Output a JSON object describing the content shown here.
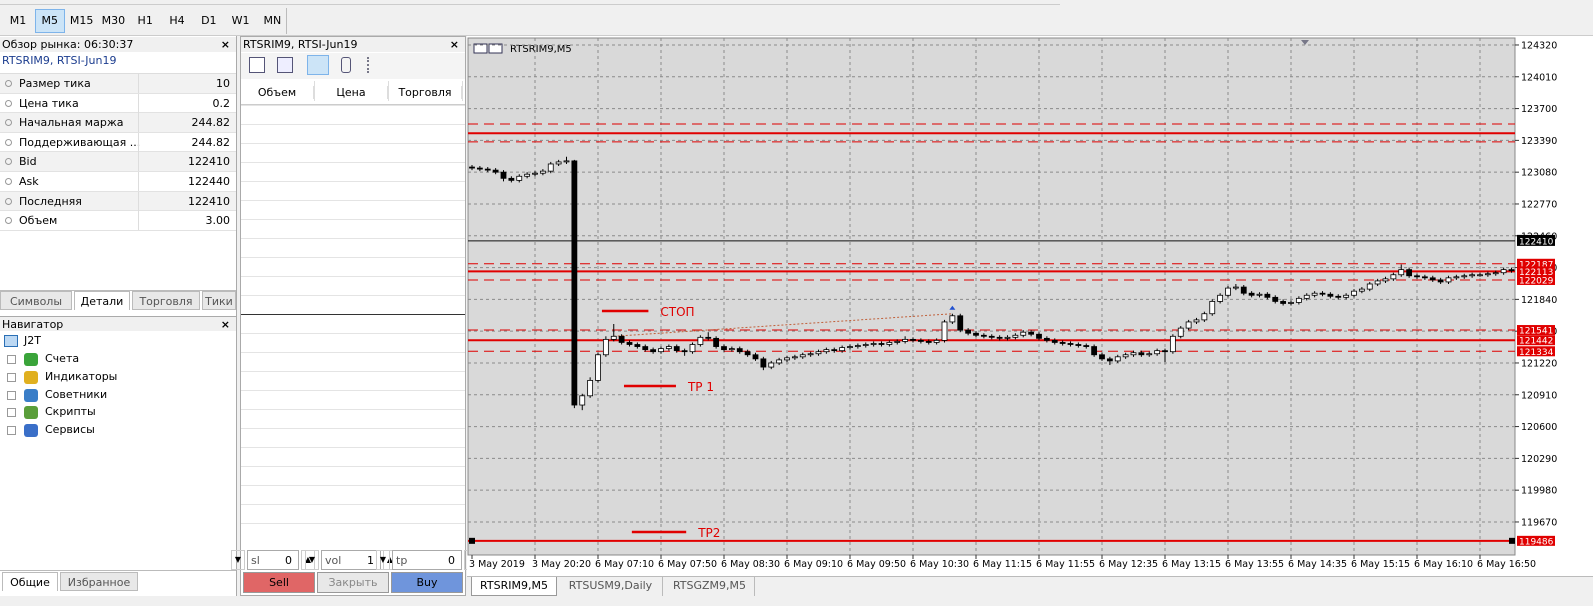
{
  "toolbar": {
    "timeframes": [
      "M1",
      "M5",
      "M15",
      "M30",
      "H1",
      "H4",
      "D1",
      "W1",
      "MN"
    ],
    "selected": 1
  },
  "market_watch": {
    "title": "Обзор рынка: 06:30:37",
    "symbol": "RTSRIM9, RTSI-Jun19",
    "rows": [
      [
        "Размер тика",
        "10"
      ],
      [
        "Цена тика",
        "0.2"
      ],
      [
        "Начальная маржа",
        "244.82"
      ],
      [
        "Поддерживающая ...",
        "244.82"
      ],
      [
        "Bid",
        "122410"
      ],
      [
        "Ask",
        "122440"
      ],
      [
        "Последняя",
        "122410"
      ],
      [
        "Объем",
        "3.00"
      ]
    ],
    "tabs": [
      "Символы",
      "Детали",
      "Торговля",
      "Тики"
    ],
    "selected_tab": 1
  },
  "navigator": {
    "title": "Навигатор",
    "root": "J2T",
    "items": [
      "Счета",
      "Индикаторы",
      "Советники",
      "Скрипты",
      "Сервисы"
    ]
  },
  "bottom_tabs": [
    "Общие",
    "Избранное"
  ],
  "depth": {
    "title": "RTSRIM9, RTSI-Jun19",
    "columns": [
      "Объем",
      "Цена",
      "Торговля"
    ],
    "controls": [
      {
        "label": "sl",
        "value": "0"
      },
      {
        "label": "vol",
        "value": "1"
      },
      {
        "label": "tp",
        "value": "0"
      }
    ],
    "buttons": [
      "Sell",
      "Закрыть",
      "Buy"
    ]
  },
  "chart_data": {
    "type": "candlestick",
    "title": "RTSRIM9,M5",
    "categories": [
      "3 May 2019",
      null,
      null,
      null,
      null,
      null,
      null,
      null,
      "3 May 20:20",
      null,
      null,
      null,
      null,
      null,
      null,
      null,
      "6 May 07:10",
      null,
      null,
      null,
      null,
      null,
      null,
      null,
      "6 May 07:50",
      null,
      null,
      null,
      null,
      null,
      null,
      null,
      "6 May 08:30",
      null,
      null,
      null,
      null,
      null,
      null,
      null,
      "6 May 09:10",
      null,
      null,
      null,
      null,
      null,
      null,
      null,
      "6 May 09:50",
      null,
      null,
      null,
      null,
      null,
      null,
      null,
      "6 May 10:30",
      null,
      null,
      null,
      null,
      null,
      null,
      null,
      "6 May 11:15",
      null,
      null,
      null,
      null,
      null,
      null,
      null,
      "6 May 11:55",
      null,
      null,
      null,
      null,
      null,
      null,
      null,
      "6 May 12:35",
      null,
      null,
      null,
      null,
      null,
      null,
      null,
      "6 May 13:15",
      null,
      null,
      null,
      null,
      null,
      null,
      null,
      "6 May 13:55",
      null,
      null,
      null,
      null,
      null,
      null,
      null,
      "6 May 14:35",
      null,
      null,
      null,
      null,
      null,
      null,
      null,
      "6 May 15:15",
      null,
      null,
      null,
      null,
      null,
      null,
      null,
      "6 May 16:10",
      null,
      null,
      null,
      null,
      null,
      null,
      null,
      "6 May 16:50",
      null,
      null,
      null,
      null
    ],
    "candles": [
      [
        123130,
        123150,
        123100,
        123120
      ],
      [
        123120,
        123140,
        123090,
        123110
      ],
      [
        123110,
        123130,
        123080,
        123100
      ],
      [
        123100,
        123120,
        123060,
        123080
      ],
      [
        123080,
        123100,
        122990,
        123020
      ],
      [
        123020,
        123040,
        122980,
        123000
      ],
      [
        123000,
        123060,
        122980,
        123040
      ],
      [
        123040,
        123080,
        123020,
        123060
      ],
      [
        123060,
        123090,
        123040,
        123070
      ],
      [
        123070,
        123110,
        123050,
        123090
      ],
      [
        123090,
        123180,
        123070,
        123160
      ],
      [
        123160,
        123200,
        123140,
        123180
      ],
      [
        123180,
        123230,
        123160,
        123190
      ],
      [
        123190,
        123200,
        120780,
        120810
      ],
      [
        120810,
        120920,
        120760,
        120900
      ],
      [
        120900,
        121080,
        120880,
        121050
      ],
      [
        121050,
        121320,
        121030,
        121300
      ],
      [
        121300,
        121480,
        121280,
        121450
      ],
      [
        121450,
        121600,
        121430,
        121480
      ],
      [
        121480,
        121500,
        121400,
        121420
      ],
      [
        121420,
        121440,
        121380,
        121400
      ],
      [
        121400,
        121420,
        121360,
        121380
      ],
      [
        121380,
        121400,
        121330,
        121350
      ],
      [
        121350,
        121370,
        121310,
        121330
      ],
      [
        121330,
        121380,
        121310,
        121360
      ],
      [
        121360,
        121400,
        121340,
        121380
      ],
      [
        121380,
        121400,
        121320,
        121340
      ],
      [
        121340,
        121360,
        121290,
        121330
      ],
      [
        121330,
        121420,
        121310,
        121400
      ],
      [
        121400,
        121490,
        121380,
        121470
      ],
      [
        121470,
        121520,
        121440,
        121460
      ],
      [
        121460,
        121480,
        121360,
        121380
      ],
      [
        121380,
        121400,
        121330,
        121350
      ],
      [
        121350,
        121380,
        121330,
        121360
      ],
      [
        121360,
        121380,
        121310,
        121330
      ],
      [
        121330,
        121350,
        121280,
        121300
      ],
      [
        121300,
        121320,
        121240,
        121260
      ],
      [
        121260,
        121280,
        121150,
        121180
      ],
      [
        121180,
        121240,
        121160,
        121220
      ],
      [
        121220,
        121270,
        121200,
        121250
      ],
      [
        121250,
        121290,
        121230,
        121270
      ],
      [
        121270,
        121300,
        121250,
        121280
      ],
      [
        121280,
        121320,
        121260,
        121300
      ],
      [
        121300,
        121330,
        121280,
        121310
      ],
      [
        121310,
        121350,
        121290,
        121330
      ],
      [
        121330,
        121370,
        121310,
        121350
      ],
      [
        121350,
        121370,
        121320,
        121340
      ],
      [
        121340,
        121390,
        121320,
        121370
      ],
      [
        121370,
        121400,
        121350,
        121380
      ],
      [
        121380,
        121410,
        121360,
        121390
      ],
      [
        121390,
        121420,
        121370,
        121400
      ],
      [
        121400,
        121430,
        121380,
        121410
      ],
      [
        121410,
        121430,
        121380,
        121400
      ],
      [
        121400,
        121440,
        121380,
        121420
      ],
      [
        121420,
        121450,
        121400,
        121430
      ],
      [
        121430,
        121480,
        121410,
        121450
      ],
      [
        121450,
        121470,
        121420,
        121440
      ],
      [
        121440,
        121460,
        121410,
        121430
      ],
      [
        121430,
        121450,
        121400,
        121420
      ],
      [
        121420,
        121460,
        121400,
        121440
      ],
      [
        121440,
        121640,
        121420,
        121620
      ],
      [
        121620,
        121700,
        121600,
        121680
      ],
      [
        121680,
        121700,
        121520,
        121540
      ],
      [
        121540,
        121560,
        121490,
        121510
      ],
      [
        121510,
        121530,
        121470,
        121490
      ],
      [
        121490,
        121510,
        121460,
        121480
      ],
      [
        121480,
        121500,
        121450,
        121470
      ],
      [
        121470,
        121490,
        121440,
        121460
      ],
      [
        121460,
        121490,
        121440,
        121470
      ],
      [
        121470,
        121510,
        121450,
        121490
      ],
      [
        121490,
        121540,
        121470,
        121520
      ],
      [
        121520,
        121540,
        121480,
        121500
      ],
      [
        121500,
        121520,
        121440,
        121460
      ],
      [
        121460,
        121480,
        121420,
        121440
      ],
      [
        121440,
        121460,
        121400,
        121420
      ],
      [
        121420,
        121440,
        121390,
        121410
      ],
      [
        121410,
        121430,
        121380,
        121400
      ],
      [
        121400,
        121420,
        121370,
        121390
      ],
      [
        121390,
        121410,
        121360,
        121380
      ],
      [
        121380,
        121400,
        121280,
        121300
      ],
      [
        121300,
        121320,
        121240,
        121260
      ],
      [
        121260,
        121280,
        121200,
        121240
      ],
      [
        121240,
        121300,
        121220,
        121280
      ],
      [
        121280,
        121320,
        121260,
        121300
      ],
      [
        121300,
        121340,
        121280,
        121320
      ],
      [
        121320,
        121340,
        121280,
        121300
      ],
      [
        121300,
        121330,
        121280,
        121310
      ],
      [
        121310,
        121360,
        121290,
        121340
      ],
      [
        121340,
        121360,
        121230,
        121330
      ],
      [
        121330,
        121500,
        121310,
        121480
      ],
      [
        121480,
        121580,
        121460,
        121560
      ],
      [
        121560,
        121640,
        121540,
        121620
      ],
      [
        121620,
        121660,
        121600,
        121640
      ],
      [
        121640,
        121720,
        121620,
        121700
      ],
      [
        121700,
        121840,
        121680,
        121820
      ],
      [
        121820,
        121900,
        121800,
        121880
      ],
      [
        121880,
        121970,
        121860,
        121950
      ],
      [
        121950,
        121990,
        121930,
        121960
      ],
      [
        121960,
        121980,
        121880,
        121900
      ],
      [
        121900,
        121920,
        121860,
        121880
      ],
      [
        121880,
        121910,
        121860,
        121890
      ],
      [
        121890,
        121910,
        121840,
        121860
      ],
      [
        121860,
        121880,
        121800,
        121820
      ],
      [
        121820,
        121840,
        121780,
        121800
      ],
      [
        121800,
        121830,
        121780,
        121810
      ],
      [
        121810,
        121870,
        121790,
        121850
      ],
      [
        121850,
        121900,
        121830,
        121880
      ],
      [
        121880,
        121920,
        121860,
        121900
      ],
      [
        121900,
        121920,
        121870,
        121890
      ],
      [
        121890,
        121910,
        121850,
        121870
      ],
      [
        121870,
        121890,
        121840,
        121860
      ],
      [
        121860,
        121900,
        121840,
        121880
      ],
      [
        121880,
        121940,
        121860,
        121920
      ],
      [
        121920,
        121960,
        121900,
        121940
      ],
      [
        121940,
        122010,
        121920,
        121990
      ],
      [
        121990,
        122040,
        121970,
        122020
      ],
      [
        122020,
        122060,
        122000,
        122040
      ],
      [
        122040,
        122100,
        122020,
        122080
      ],
      [
        122080,
        122180,
        122060,
        122130
      ],
      [
        122130,
        122150,
        122050,
        122070
      ],
      [
        122070,
        122090,
        122040,
        122060
      ],
      [
        122060,
        122080,
        122030,
        122050
      ],
      [
        122050,
        122070,
        122010,
        122030
      ],
      [
        122030,
        122050,
        121990,
        122010
      ],
      [
        122010,
        122070,
        121990,
        122050
      ],
      [
        122050,
        122080,
        122030,
        122060
      ],
      [
        122060,
        122090,
        122040,
        122070
      ],
      [
        122070,
        122100,
        122050,
        122080
      ],
      [
        122080,
        122100,
        122060,
        122080
      ],
      [
        122080,
        122110,
        122060,
        122090
      ],
      [
        122090,
        122120,
        122070,
        122100
      ],
      [
        122100,
        122150,
        122080,
        122130
      ],
      [
        122130,
        122150,
        122100,
        122120
      ]
    ],
    "ylim": [
      119348,
      124388
    ],
    "yticks": [
      124320,
      124010,
      123700,
      123390,
      123080,
      122770,
      122460,
      122150,
      121840,
      121530,
      121220,
      120910,
      120600,
      120290,
      119980,
      119670
    ],
    "grid": true,
    "bid": 122410,
    "levels": [
      {
        "value": 123550,
        "style": "dashed"
      },
      {
        "value": 123460,
        "style": "solid"
      },
      {
        "value": 123375,
        "style": "dashed"
      },
      {
        "value": 122187,
        "style": "dashed",
        "axis_label": true
      },
      {
        "value": 122113,
        "style": "solid",
        "axis_label": true
      },
      {
        "value": 122029,
        "style": "dashed",
        "axis_label": true
      },
      {
        "value": 121541,
        "style": "dashed",
        "axis_label": true
      },
      {
        "value": 121442,
        "style": "solid",
        "axis_label": true
      },
      {
        "value": 121334,
        "style": "dashed",
        "axis_label": true
      },
      {
        "value": 119486,
        "style": "solid",
        "axis_label": true
      }
    ],
    "annotations": [
      {
        "text": "СТОП",
        "price": 121727,
        "from": 16.5,
        "to": 22.4
      },
      {
        "text": "TP 1",
        "price": 120995,
        "from": 19.3,
        "to": 25.9
      },
      {
        "text": "TP2",
        "price": 119572,
        "from": 20.3,
        "to": 27.2
      }
    ]
  },
  "chart_tabs": [
    "RTSRIM9,M5",
    "RTSUSM9,Daily",
    "RTSGZM9,M5"
  ]
}
